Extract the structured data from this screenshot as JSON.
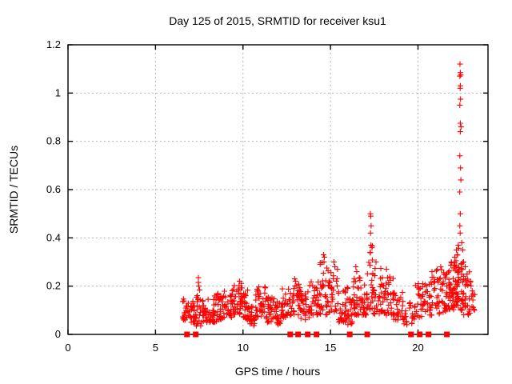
{
  "chart_data": {
    "type": "scatter",
    "title": "Day 125 of 2015, SRMTID for receiver ksu1",
    "xlabel": "GPS time / hours",
    "ylabel": "SRMTID / TECUs",
    "xlim": [
      0,
      24
    ],
    "ylim": [
      0,
      1.2
    ],
    "xticks": [
      0,
      5,
      10,
      15,
      20
    ],
    "yticks": [
      0,
      0.2,
      0.4,
      0.6,
      0.8,
      1,
      1.2
    ],
    "grid": true,
    "legend": "none",
    "style": {
      "marker_shape": "plus",
      "marker_color": "#ff0000",
      "marker_size_px": 7,
      "grid_color": "#b4b4b4",
      "axis_color": "#000000",
      "background": "#ffffff"
    },
    "series": [
      {
        "name": "SRMTID",
        "comment": "Dense scatter of red plus markers, data spans ~6.5h to ~23.3h. density_segments approximate the cloud; peak_points are individually readable points; zero_flag_times are the red filled squares sitting on the y=0 axis line.",
        "density_segments_format": "[t_start_hours, t_end_hours, n_points, y_min_TECUs, y_max_TECUs]",
        "density_segments": [
          [
            6.55,
            7.0,
            25,
            0.06,
            0.16
          ],
          [
            7.0,
            7.3,
            20,
            0.05,
            0.15
          ],
          [
            7.3,
            7.6,
            20,
            0.03,
            0.21
          ],
          [
            7.6,
            8.0,
            22,
            0.05,
            0.14
          ],
          [
            8.0,
            8.5,
            30,
            0.05,
            0.16
          ],
          [
            8.5,
            9.0,
            32,
            0.06,
            0.19
          ],
          [
            9.0,
            9.5,
            30,
            0.07,
            0.19
          ],
          [
            9.5,
            10.0,
            35,
            0.08,
            0.22
          ],
          [
            10.0,
            10.35,
            25,
            0.06,
            0.2
          ],
          [
            10.35,
            10.7,
            20,
            0.03,
            0.12
          ],
          [
            10.7,
            11.3,
            35,
            0.07,
            0.2
          ],
          [
            11.3,
            11.8,
            30,
            0.05,
            0.16
          ],
          [
            11.8,
            12.2,
            25,
            0.04,
            0.14
          ],
          [
            12.2,
            12.7,
            30,
            0.07,
            0.19
          ],
          [
            12.7,
            13.3,
            35,
            0.08,
            0.22
          ],
          [
            13.3,
            13.8,
            30,
            0.06,
            0.18
          ],
          [
            13.8,
            14.4,
            32,
            0.08,
            0.22
          ],
          [
            14.4,
            14.9,
            30,
            0.08,
            0.3
          ],
          [
            14.9,
            15.45,
            28,
            0.09,
            0.27
          ],
          [
            15.45,
            15.85,
            25,
            0.05,
            0.2
          ],
          [
            15.85,
            16.25,
            25,
            0.04,
            0.2
          ],
          [
            16.25,
            16.7,
            30,
            0.08,
            0.25
          ],
          [
            16.7,
            17.1,
            25,
            0.08,
            0.22
          ],
          [
            17.1,
            17.45,
            25,
            0.1,
            0.38
          ],
          [
            17.45,
            18.0,
            35,
            0.08,
            0.28
          ],
          [
            18.0,
            18.6,
            32,
            0.08,
            0.24
          ],
          [
            18.6,
            19.2,
            28,
            0.06,
            0.18
          ],
          [
            19.2,
            19.8,
            20,
            0.04,
            0.14
          ],
          [
            19.8,
            20.4,
            30,
            0.07,
            0.22
          ],
          [
            20.4,
            21.0,
            32,
            0.08,
            0.24
          ],
          [
            21.0,
            21.6,
            35,
            0.08,
            0.27
          ],
          [
            21.6,
            22.05,
            38,
            0.1,
            0.3
          ],
          [
            22.05,
            22.35,
            40,
            0.12,
            0.36
          ],
          [
            22.35,
            22.6,
            20,
            0.1,
            0.34
          ],
          [
            22.6,
            23.0,
            25,
            0.08,
            0.26
          ],
          [
            23.0,
            23.25,
            10,
            0.1,
            0.22
          ]
        ],
        "peak_points": [
          [
            7.45,
            0.235
          ],
          [
            7.45,
            0.215
          ],
          [
            7.47,
            0.2
          ],
          [
            9.8,
            0.22
          ],
          [
            12.95,
            0.23
          ],
          [
            13.0,
            0.22
          ],
          [
            14.6,
            0.33
          ],
          [
            14.65,
            0.32
          ],
          [
            14.63,
            0.3
          ],
          [
            15.2,
            0.3
          ],
          [
            15.25,
            0.28
          ],
          [
            15.4,
            0.27
          ],
          [
            16.45,
            0.28
          ],
          [
            16.5,
            0.26
          ],
          [
            17.28,
            0.5
          ],
          [
            17.3,
            0.49
          ],
          [
            17.32,
            0.45
          ],
          [
            17.29,
            0.42
          ],
          [
            17.31,
            0.37
          ],
          [
            17.27,
            0.34
          ],
          [
            17.6,
            0.3
          ],
          [
            18.2,
            0.27
          ],
          [
            20.8,
            0.26
          ],
          [
            21.3,
            0.28
          ],
          [
            21.9,
            0.3
          ],
          [
            22.1,
            0.32
          ],
          [
            22.2,
            0.35
          ],
          [
            22.25,
            0.33
          ],
          [
            22.3,
            0.37
          ],
          [
            22.4,
            1.12
          ],
          [
            22.42,
            1.085
          ],
          [
            22.44,
            1.075
          ],
          [
            22.39,
            1.07
          ],
          [
            22.42,
            1.03
          ],
          [
            22.41,
            1.02
          ],
          [
            22.43,
            0.975
          ],
          [
            22.39,
            0.95
          ],
          [
            22.42,
            0.875
          ],
          [
            22.46,
            0.86
          ],
          [
            22.42,
            0.84
          ],
          [
            22.39,
            0.74
          ],
          [
            22.43,
            0.69
          ],
          [
            22.45,
            0.64
          ],
          [
            22.38,
            0.59
          ],
          [
            22.42,
            0.5
          ],
          [
            22.39,
            0.45
          ],
          [
            22.41,
            0.42
          ],
          [
            22.5,
            0.38
          ],
          [
            22.55,
            0.35
          ],
          [
            22.6,
            0.3
          ],
          [
            22.7,
            0.28
          ],
          [
            22.8,
            0.25
          ],
          [
            23.0,
            0.22
          ],
          [
            23.1,
            0.18
          ]
        ],
        "zero_flag_times": [
          6.8,
          7.3,
          12.7,
          13.15,
          13.7,
          14.2,
          16.1,
          17.1,
          19.6,
          20.1,
          20.6,
          21.65
        ]
      }
    ]
  }
}
